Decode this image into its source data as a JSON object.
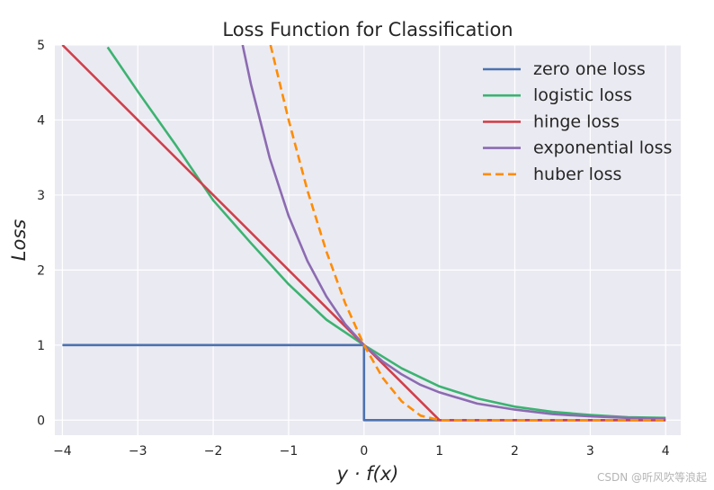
{
  "chart_data": {
    "type": "line",
    "title": "Loss Function for Classification",
    "xlabel": "y · f(x)",
    "ylabel": "Loss",
    "xlim": [
      -4.1,
      4.2
    ],
    "ylim": [
      -0.2,
      5
    ],
    "xticks": [
      -4,
      -3,
      -2,
      -1,
      0,
      1,
      2,
      3,
      4
    ],
    "xtick_labels": [
      "−4",
      "−3",
      "−2",
      "−1",
      "0",
      "1",
      "2",
      "3",
      "4"
    ],
    "yticks": [
      0,
      1,
      2,
      3,
      4,
      5
    ],
    "ytick_labels": [
      "0",
      "1",
      "2",
      "3",
      "4",
      "5"
    ],
    "grid": true,
    "legend_position": "top-right",
    "series": [
      {
        "name": "zero one loss",
        "color": "#4c72b0",
        "dash": "solid",
        "x": [
          -4,
          0,
          0,
          4
        ],
        "y": [
          1,
          1,
          0,
          0
        ]
      },
      {
        "name": "logistic loss",
        "color": "#3cb371",
        "dash": "solid",
        "x": [
          -3.4,
          -3,
          -2.5,
          -2,
          -1.5,
          -1,
          -0.5,
          0,
          0.5,
          1,
          1.5,
          2,
          2.5,
          3,
          3.5,
          4
        ],
        "y": [
          4.97,
          4.38,
          3.67,
          2.93,
          2.36,
          1.81,
          1.34,
          1.0,
          0.69,
          0.45,
          0.29,
          0.18,
          0.11,
          0.07,
          0.04,
          0.03
        ]
      },
      {
        "name": "hinge loss",
        "color": "#d0404b",
        "dash": "solid",
        "x": [
          -4,
          1,
          4
        ],
        "y": [
          5,
          0,
          0
        ]
      },
      {
        "name": "exponential loss",
        "color": "#8c6bb1",
        "dash": "solid",
        "x": [
          -1.61,
          -1.5,
          -1.25,
          -1,
          -0.75,
          -0.5,
          -0.25,
          0,
          0.25,
          0.5,
          0.75,
          1,
          1.5,
          2,
          2.5,
          3,
          3.5,
          4
        ],
        "y": [
          5.0,
          4.48,
          3.49,
          2.72,
          2.12,
          1.65,
          1.28,
          1.0,
          0.78,
          0.61,
          0.47,
          0.37,
          0.22,
          0.14,
          0.08,
          0.05,
          0.03,
          0.02
        ]
      },
      {
        "name": "huber loss",
        "color": "#ff8c00",
        "dash": "dashed",
        "x": [
          -1.24,
          -1,
          -0.75,
          -0.5,
          -0.25,
          0,
          0.25,
          0.5,
          0.75,
          1,
          4
        ],
        "y": [
          5.0,
          4.0,
          3.06,
          2.25,
          1.56,
          1.0,
          0.56,
          0.25,
          0.06,
          0,
          0
        ]
      }
    ]
  },
  "watermark": "CSDN @听风吹等浪起"
}
